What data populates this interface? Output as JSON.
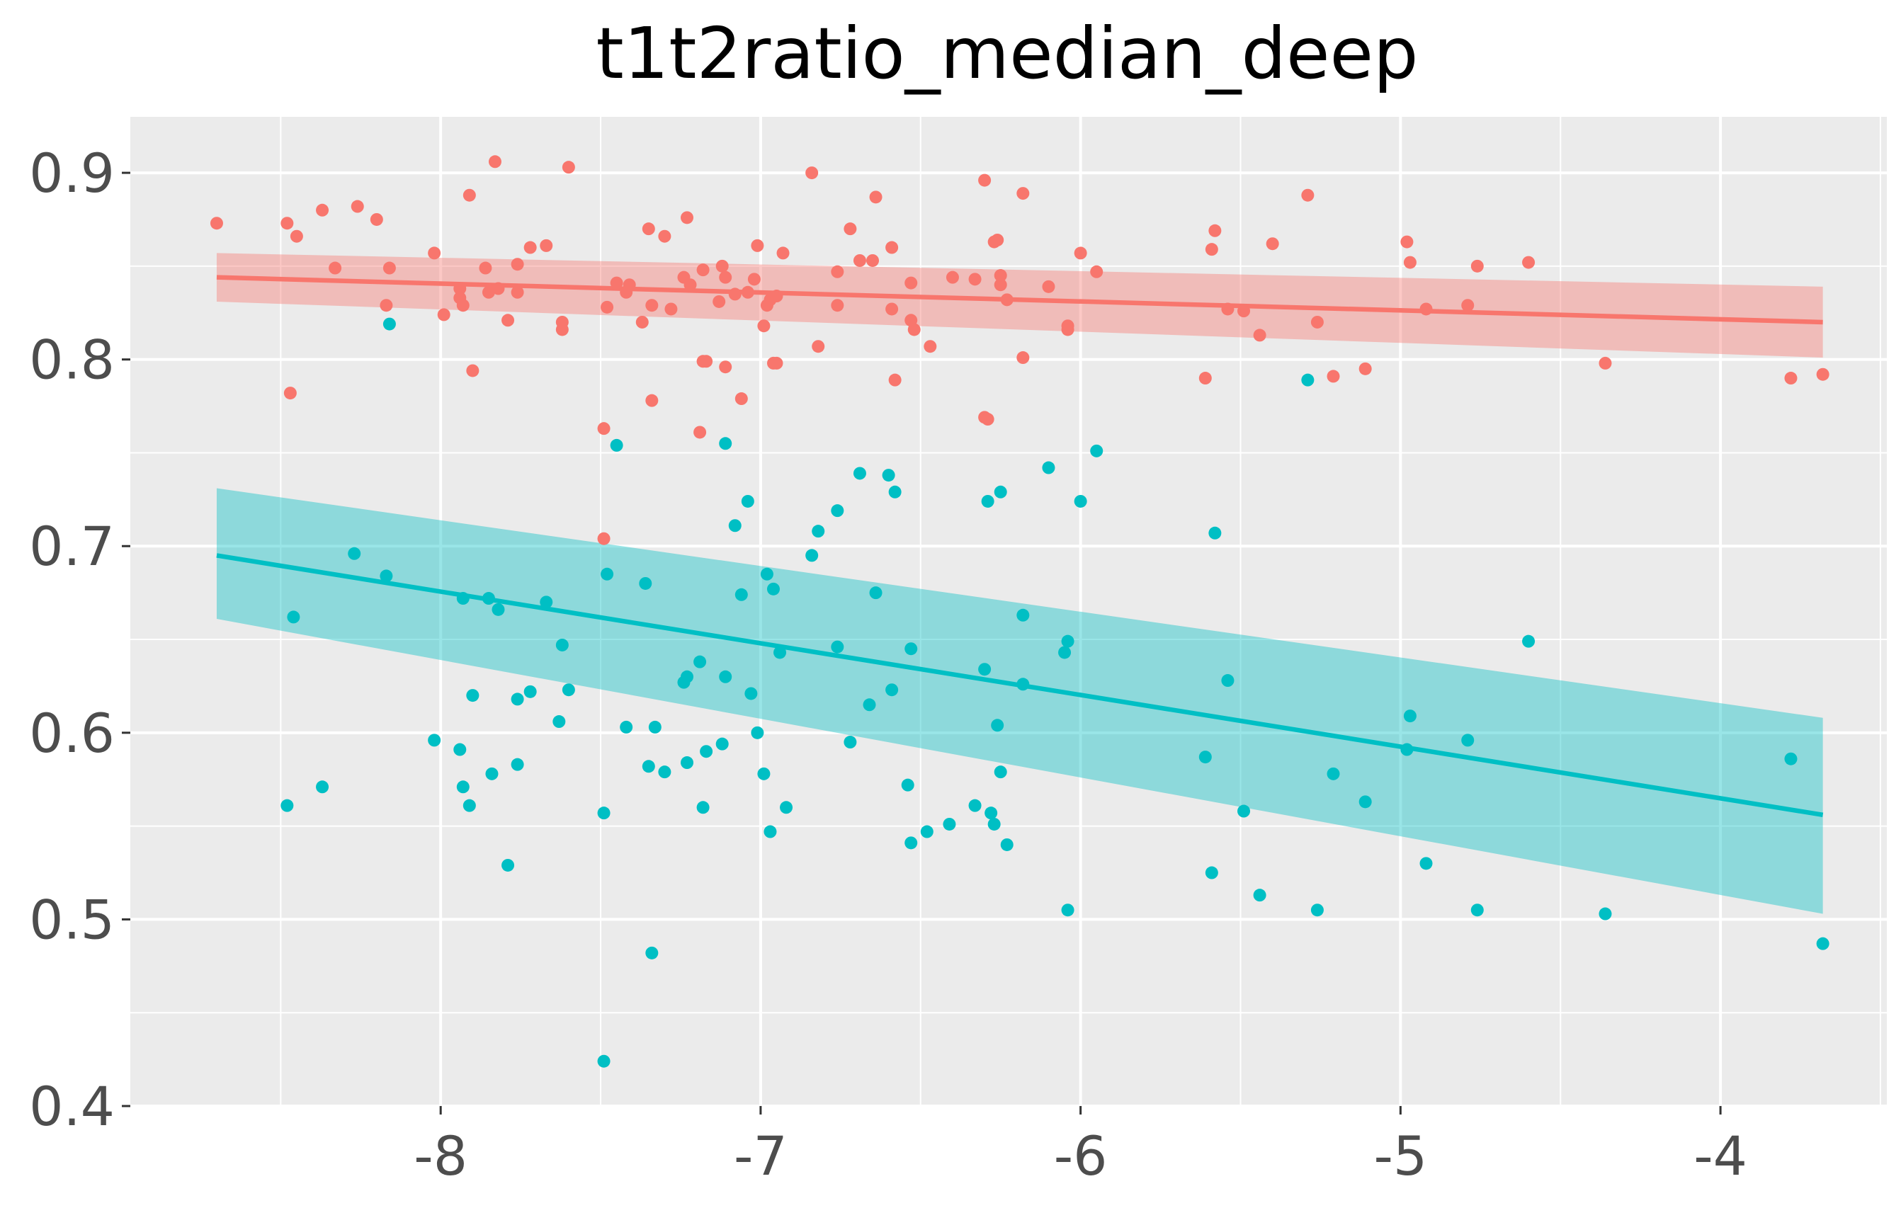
{
  "chart_data": {
    "type": "scatter",
    "title": "t1t2ratio_median_deep",
    "xlabel": "",
    "ylabel": "",
    "xlim": [
      -8.97,
      -3.48
    ],
    "ylim": [
      0.4,
      0.93
    ],
    "x_ticks": [
      -8,
      -7,
      -6,
      -5,
      -4
    ],
    "x_tick_labels": [
      "-8",
      "-7",
      "-6",
      "-5",
      "-4"
    ],
    "y_ticks": [
      0.4,
      0.5,
      0.6,
      0.7,
      0.8,
      0.9
    ],
    "y_tick_labels": [
      "0.4",
      "0.5",
      "0.6",
      "0.7",
      "0.8",
      "0.9"
    ],
    "grid": true,
    "legend": "none",
    "panel_background": "#ebebeb",
    "series": [
      {
        "color": "#f8766d",
        "points": [
          [
            -8.7,
            0.873
          ],
          [
            -8.48,
            0.873
          ],
          [
            -8.47,
            0.782
          ],
          [
            -8.45,
            0.866
          ],
          [
            -8.37,
            0.88
          ],
          [
            -8.33,
            0.849
          ],
          [
            -8.26,
            0.882
          ],
          [
            -8.2,
            0.875
          ],
          [
            -8.17,
            0.829
          ],
          [
            -8.16,
            0.849
          ],
          [
            -8.02,
            0.857
          ],
          [
            -7.99,
            0.824
          ],
          [
            -7.94,
            0.838
          ],
          [
            -7.94,
            0.833
          ],
          [
            -7.93,
            0.829
          ],
          [
            -7.91,
            0.888
          ],
          [
            -7.9,
            0.794
          ],
          [
            -7.86,
            0.849
          ],
          [
            -7.85,
            0.836
          ],
          [
            -7.83,
            0.906
          ],
          [
            -7.82,
            0.838
          ],
          [
            -7.79,
            0.821
          ],
          [
            -7.76,
            0.851
          ],
          [
            -7.76,
            0.836
          ],
          [
            -7.72,
            0.86
          ],
          [
            -7.67,
            0.861
          ],
          [
            -7.62,
            0.816
          ],
          [
            -7.62,
            0.82
          ],
          [
            -7.6,
            0.903
          ],
          [
            -7.49,
            0.763
          ],
          [
            -7.49,
            0.704
          ],
          [
            -7.48,
            0.828
          ],
          [
            -7.45,
            0.841
          ],
          [
            -7.42,
            0.836
          ],
          [
            -7.41,
            0.84
          ],
          [
            -7.37,
            0.82
          ],
          [
            -7.35,
            0.87
          ],
          [
            -7.34,
            0.778
          ],
          [
            -7.34,
            0.829
          ],
          [
            -7.3,
            0.866
          ],
          [
            -7.28,
            0.827
          ],
          [
            -7.24,
            0.844
          ],
          [
            -7.23,
            0.876
          ],
          [
            -7.22,
            0.84
          ],
          [
            -7.19,
            0.761
          ],
          [
            -7.18,
            0.848
          ],
          [
            -7.18,
            0.799
          ],
          [
            -7.17,
            0.799
          ],
          [
            -7.13,
            0.831
          ],
          [
            -7.12,
            0.85
          ],
          [
            -7.11,
            0.844
          ],
          [
            -7.11,
            0.796
          ],
          [
            -7.08,
            0.835
          ],
          [
            -7.06,
            0.779
          ],
          [
            -7.04,
            0.836
          ],
          [
            -7.02,
            0.843
          ],
          [
            -7.01,
            0.861
          ],
          [
            -6.99,
            0.818
          ],
          [
            -6.98,
            0.829
          ],
          [
            -6.97,
            0.832
          ],
          [
            -6.96,
            0.798
          ],
          [
            -6.95,
            0.834
          ],
          [
            -6.95,
            0.798
          ],
          [
            -6.93,
            0.857
          ],
          [
            -6.84,
            0.9
          ],
          [
            -6.82,
            0.807
          ],
          [
            -6.76,
            0.847
          ],
          [
            -6.76,
            0.829
          ],
          [
            -6.72,
            0.87
          ],
          [
            -6.69,
            0.853
          ],
          [
            -6.65,
            0.853
          ],
          [
            -6.64,
            0.887
          ],
          [
            -6.59,
            0.86
          ],
          [
            -6.59,
            0.827
          ],
          [
            -6.58,
            0.789
          ],
          [
            -6.53,
            0.841
          ],
          [
            -6.53,
            0.821
          ],
          [
            -6.52,
            0.816
          ],
          [
            -6.47,
            0.807
          ],
          [
            -6.4,
            0.844
          ],
          [
            -6.33,
            0.843
          ],
          [
            -6.3,
            0.769
          ],
          [
            -6.29,
            0.768
          ],
          [
            -6.3,
            0.896
          ],
          [
            -6.27,
            0.863
          ],
          [
            -6.26,
            0.864
          ],
          [
            -6.25,
            0.84
          ],
          [
            -6.25,
            0.845
          ],
          [
            -6.23,
            0.832
          ],
          [
            -6.18,
            0.889
          ],
          [
            -6.18,
            0.801
          ],
          [
            -6.1,
            0.839
          ],
          [
            -6.04,
            0.818
          ],
          [
            -6.04,
            0.816
          ],
          [
            -6.0,
            0.857
          ],
          [
            -5.95,
            0.847
          ],
          [
            -5.61,
            0.79
          ],
          [
            -5.59,
            0.859
          ],
          [
            -5.58,
            0.869
          ],
          [
            -5.54,
            0.827
          ],
          [
            -5.49,
            0.826
          ],
          [
            -5.44,
            0.813
          ],
          [
            -5.4,
            0.862
          ],
          [
            -5.29,
            0.888
          ],
          [
            -5.26,
            0.82
          ],
          [
            -5.21,
            0.791
          ],
          [
            -5.11,
            0.795
          ],
          [
            -4.98,
            0.863
          ],
          [
            -4.97,
            0.852
          ],
          [
            -4.92,
            0.827
          ],
          [
            -4.79,
            0.829
          ],
          [
            -4.76,
            0.85
          ],
          [
            -4.6,
            0.852
          ],
          [
            -4.36,
            0.798
          ],
          [
            -3.78,
            0.79
          ],
          [
            -3.68,
            0.792
          ]
        ],
        "fit": {
          "x": [
            -8.7,
            -3.68
          ],
          "y": [
            0.844,
            0.82
          ],
          "ci_lower": [
            0.831,
            0.801
          ],
          "ci_upper": [
            0.857,
            0.839
          ]
        }
      },
      {
        "color": "#00bfc4",
        "points": [
          [
            -8.48,
            0.561
          ],
          [
            -8.46,
            0.662
          ],
          [
            -8.37,
            0.571
          ],
          [
            -8.27,
            0.696
          ],
          [
            -8.17,
            0.684
          ],
          [
            -8.16,
            0.819
          ],
          [
            -8.02,
            0.596
          ],
          [
            -7.94,
            0.591
          ],
          [
            -7.93,
            0.571
          ],
          [
            -7.93,
            0.672
          ],
          [
            -7.91,
            0.561
          ],
          [
            -7.9,
            0.62
          ],
          [
            -7.85,
            0.672
          ],
          [
            -7.84,
            0.578
          ],
          [
            -7.82,
            0.666
          ],
          [
            -7.79,
            0.529
          ],
          [
            -7.76,
            0.618
          ],
          [
            -7.76,
            0.583
          ],
          [
            -7.72,
            0.622
          ],
          [
            -7.67,
            0.67
          ],
          [
            -7.63,
            0.606
          ],
          [
            -7.62,
            0.647
          ],
          [
            -7.6,
            0.623
          ],
          [
            -7.49,
            0.557
          ],
          [
            -7.49,
            0.424
          ],
          [
            -7.48,
            0.685
          ],
          [
            -7.45,
            0.754
          ],
          [
            -7.42,
            0.603
          ],
          [
            -7.36,
            0.68
          ],
          [
            -7.35,
            0.582
          ],
          [
            -7.33,
            0.603
          ],
          [
            -7.34,
            0.482
          ],
          [
            -7.3,
            0.579
          ],
          [
            -7.24,
            0.627
          ],
          [
            -7.23,
            0.63
          ],
          [
            -7.23,
            0.584
          ],
          [
            -7.19,
            0.638
          ],
          [
            -7.18,
            0.56
          ],
          [
            -7.17,
            0.59
          ],
          [
            -7.12,
            0.594
          ],
          [
            -7.11,
            0.755
          ],
          [
            -7.11,
            0.63
          ],
          [
            -7.08,
            0.711
          ],
          [
            -7.06,
            0.674
          ],
          [
            -7.04,
            0.724
          ],
          [
            -7.03,
            0.621
          ],
          [
            -7.01,
            0.6
          ],
          [
            -6.99,
            0.578
          ],
          [
            -6.98,
            0.685
          ],
          [
            -6.97,
            0.547
          ],
          [
            -6.96,
            0.677
          ],
          [
            -6.94,
            0.643
          ],
          [
            -6.92,
            0.56
          ],
          [
            -6.84,
            0.695
          ],
          [
            -6.82,
            0.708
          ],
          [
            -6.76,
            0.719
          ],
          [
            -6.76,
            0.646
          ],
          [
            -6.72,
            0.595
          ],
          [
            -6.69,
            0.739
          ],
          [
            -6.66,
            0.615
          ],
          [
            -6.64,
            0.675
          ],
          [
            -6.6,
            0.738
          ],
          [
            -6.59,
            0.623
          ],
          [
            -6.58,
            0.729
          ],
          [
            -6.54,
            0.572
          ],
          [
            -6.53,
            0.645
          ],
          [
            -6.53,
            0.541
          ],
          [
            -6.48,
            0.547
          ],
          [
            -6.41,
            0.551
          ],
          [
            -6.33,
            0.561
          ],
          [
            -6.3,
            0.634
          ],
          [
            -6.29,
            0.724
          ],
          [
            -6.28,
            0.557
          ],
          [
            -6.27,
            0.551
          ],
          [
            -6.26,
            0.604
          ],
          [
            -6.25,
            0.729
          ],
          [
            -6.25,
            0.579
          ],
          [
            -6.23,
            0.54
          ],
          [
            -6.18,
            0.663
          ],
          [
            -6.18,
            0.626
          ],
          [
            -6.1,
            0.742
          ],
          [
            -6.05,
            0.643
          ],
          [
            -6.04,
            0.649
          ],
          [
            -6.04,
            0.505
          ],
          [
            -6.0,
            0.724
          ],
          [
            -5.95,
            0.751
          ],
          [
            -5.61,
            0.587
          ],
          [
            -5.59,
            0.525
          ],
          [
            -5.58,
            0.707
          ],
          [
            -5.54,
            0.628
          ],
          [
            -5.49,
            0.558
          ],
          [
            -5.44,
            0.513
          ],
          [
            -5.29,
            0.789
          ],
          [
            -5.26,
            0.505
          ],
          [
            -5.21,
            0.578
          ],
          [
            -5.11,
            0.563
          ],
          [
            -4.98,
            0.591
          ],
          [
            -4.97,
            0.609
          ],
          [
            -4.92,
            0.53
          ],
          [
            -4.79,
            0.596
          ],
          [
            -4.76,
            0.505
          ],
          [
            -4.6,
            0.649
          ],
          [
            -4.36,
            0.503
          ],
          [
            -3.78,
            0.586
          ],
          [
            -3.68,
            0.487
          ]
        ],
        "fit": {
          "x": [
            -8.7,
            -3.68
          ],
          "y": [
            0.695,
            0.556
          ],
          "ci_lower": [
            0.661,
            0.503
          ],
          "ci_upper": [
            0.731,
            0.608
          ]
        }
      }
    ]
  }
}
